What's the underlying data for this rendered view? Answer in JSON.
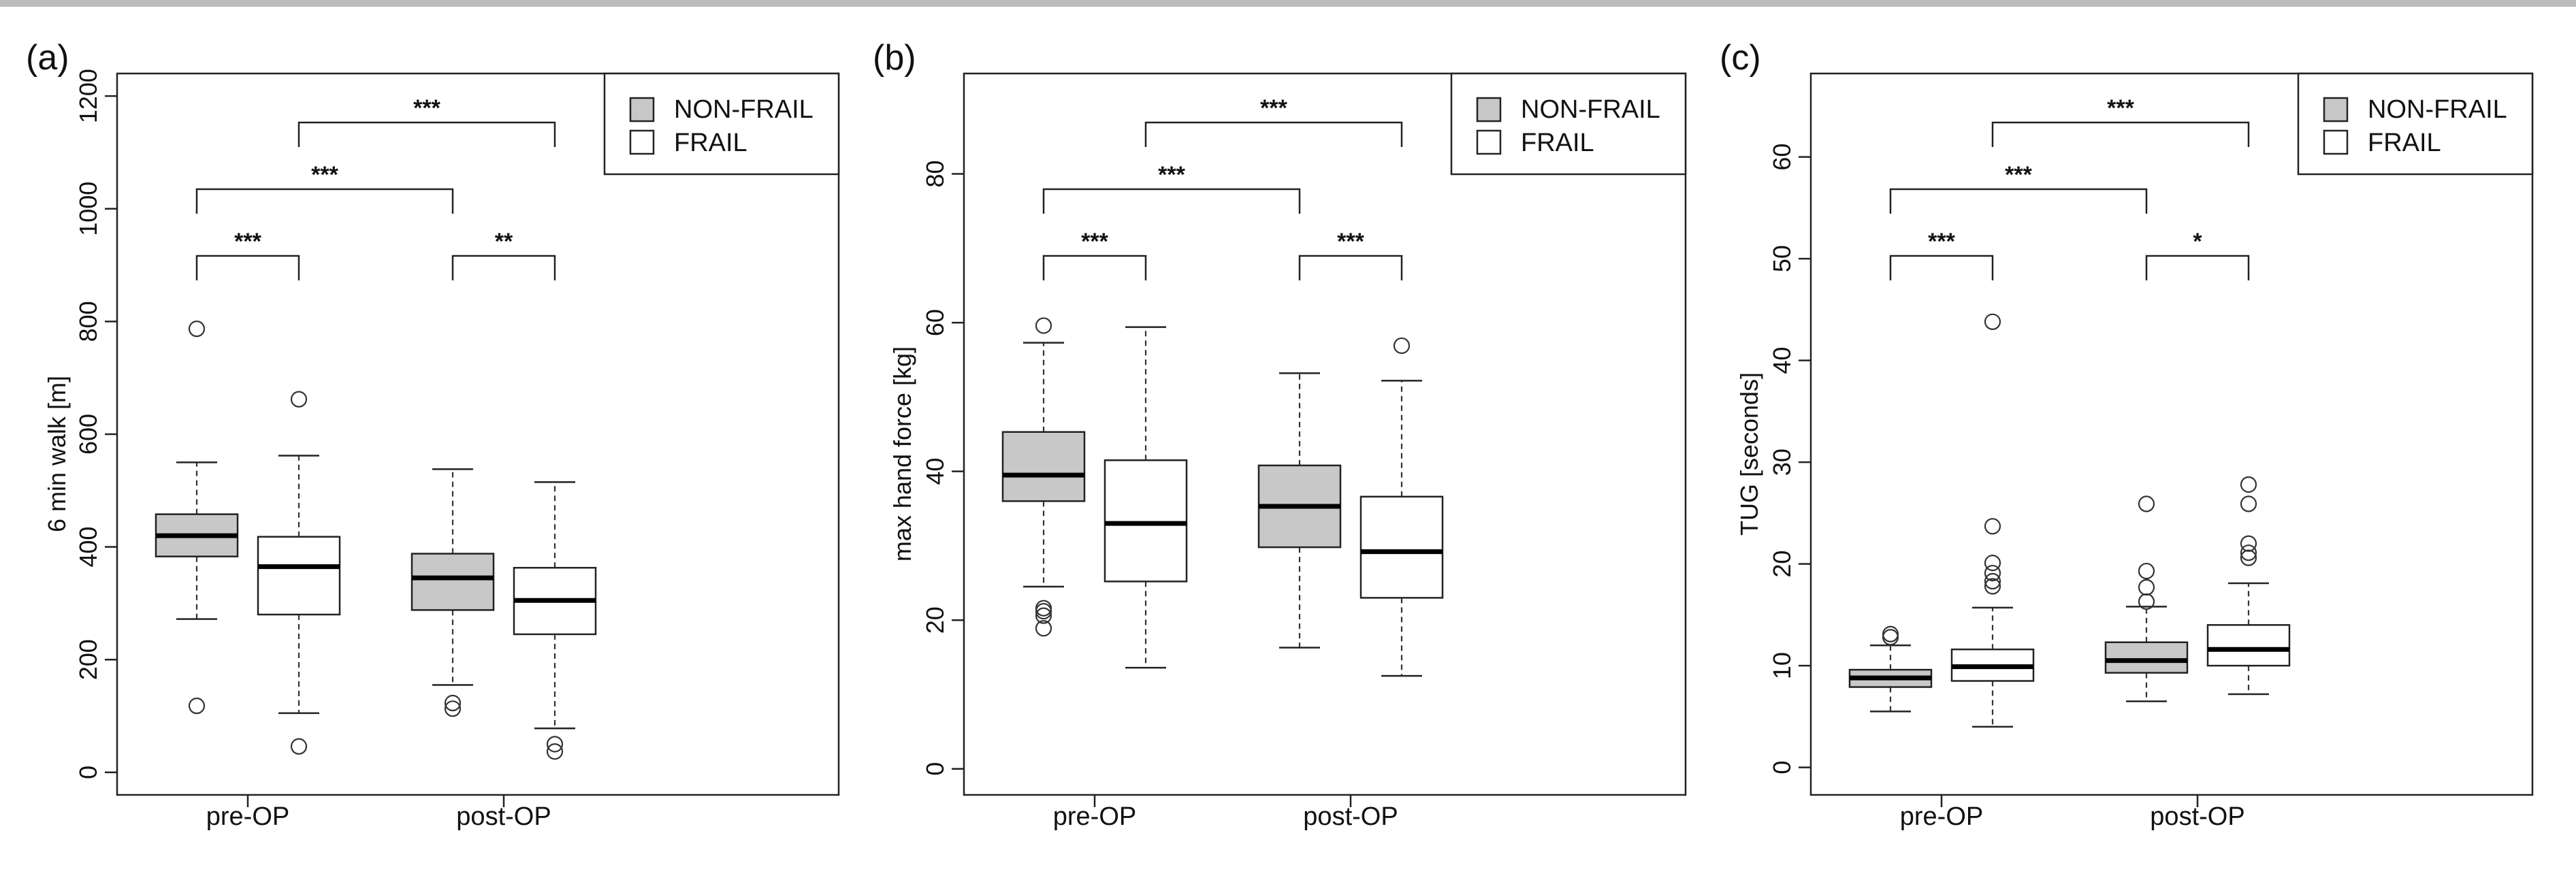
{
  "chart_data": [
    {
      "type": "boxplot",
      "panel_label": "(a)",
      "ylabel": "6 min walk [m]",
      "ylim": [
        -40,
        1240
      ],
      "yticks": [
        0,
        200,
        400,
        600,
        800,
        1000,
        1200
      ],
      "categories": [
        "pre-OP",
        "post-OP"
      ],
      "legend": {
        "position": "top-right",
        "entries": [
          "NON-FRAIL",
          "FRAIL"
        ]
      },
      "series": [
        {
          "name": "NON-FRAIL",
          "fill": "#c8c8c8",
          "boxes": [
            {
              "whisker_low": 272,
              "q1": 383,
              "median": 420,
              "q3": 458,
              "whisker_high": 550,
              "outliers": [
                118,
                787
              ]
            },
            {
              "whisker_low": 155,
              "q1": 288,
              "median": 345,
              "q3": 388,
              "whisker_high": 538,
              "outliers": [
                113,
                123
              ]
            }
          ]
        },
        {
          "name": "FRAIL",
          "fill": "#ffffff",
          "boxes": [
            {
              "whisker_low": 105,
              "q1": 280,
              "median": 365,
              "q3": 418,
              "whisker_high": 562,
              "outliers": [
                46,
                662
              ]
            },
            {
              "whisker_low": 78,
              "q1": 245,
              "median": 305,
              "q3": 363,
              "whisker_high": 515,
              "outliers": [
                37,
                50
              ]
            }
          ]
        }
      ],
      "significance": [
        {
          "from": 0,
          "to": 1,
          "level": 0,
          "stars": "***"
        },
        {
          "from": 2,
          "to": 3,
          "level": 0,
          "stars": "**"
        },
        {
          "from": 0,
          "to": 2,
          "level": 1,
          "stars": "***"
        },
        {
          "from": 1,
          "to": 3,
          "level": 2,
          "stars": "***"
        }
      ]
    },
    {
      "type": "boxplot",
      "panel_label": "(b)",
      "ylabel": "max hand force [kg]",
      "ylim": [
        -3.5,
        93.5
      ],
      "yticks": [
        0,
        20,
        40,
        60,
        80
      ],
      "categories": [
        "pre-OP",
        "post-OP"
      ],
      "legend": {
        "position": "top-right",
        "entries": [
          "NON-FRAIL",
          "FRAIL"
        ]
      },
      "series": [
        {
          "name": "NON-FRAIL",
          "fill": "#c8c8c8",
          "boxes": [
            {
              "whisker_low": 24.5,
              "q1": 36,
              "median": 39.5,
              "q3": 45.3,
              "whisker_high": 57.3,
              "outliers": [
                18.9,
                20.6,
                21.2,
                21.6,
                59.6
              ]
            },
            {
              "whisker_low": 16.3,
              "q1": 29.8,
              "median": 35.3,
              "q3": 40.8,
              "whisker_high": 53.2,
              "outliers": []
            }
          ]
        },
        {
          "name": "FRAIL",
          "fill": "#ffffff",
          "boxes": [
            {
              "whisker_low": 13.6,
              "q1": 25.2,
              "median": 33,
              "q3": 41.5,
              "whisker_high": 59.4,
              "outliers": []
            },
            {
              "whisker_low": 12.5,
              "q1": 23,
              "median": 29.2,
              "q3": 36.6,
              "whisker_high": 52.2,
              "outliers": [
                56.9
              ]
            }
          ]
        }
      ],
      "significance": [
        {
          "from": 0,
          "to": 1,
          "level": 0,
          "stars": "***"
        },
        {
          "from": 2,
          "to": 3,
          "level": 0,
          "stars": "***"
        },
        {
          "from": 0,
          "to": 2,
          "level": 1,
          "stars": "***"
        },
        {
          "from": 1,
          "to": 3,
          "level": 2,
          "stars": "***"
        }
      ]
    },
    {
      "type": "boxplot",
      "panel_label": "(c)",
      "ylabel": "TUG [seconds]",
      "ylim": [
        -2.7,
        68.2
      ],
      "yticks": [
        0,
        10,
        20,
        30,
        40,
        50,
        60
      ],
      "categories": [
        "pre-OP",
        "post-OP"
      ],
      "legend": {
        "position": "top-right",
        "entries": [
          "NON-FRAIL",
          "FRAIL"
        ]
      },
      "series": [
        {
          "name": "NON-FRAIL",
          "fill": "#c8c8c8",
          "boxes": [
            {
              "whisker_low": 5.5,
              "q1": 7.9,
              "median": 8.8,
              "q3": 9.6,
              "whisker_high": 12,
              "outliers": [
                12.8,
                13.1
              ]
            },
            {
              "whisker_low": 6.5,
              "q1": 9.3,
              "median": 10.5,
              "q3": 12.3,
              "whisker_high": 15.8,
              "outliers": [
                16.3,
                17.7,
                19.3,
                25.9
              ]
            }
          ]
        },
        {
          "name": "FRAIL",
          "fill": "#ffffff",
          "boxes": [
            {
              "whisker_low": 4,
              "q1": 8.5,
              "median": 9.9,
              "q3": 11.6,
              "whisker_high": 15.7,
              "outliers": [
                17.8,
                18.3,
                19.1,
                20.1,
                23.7,
                43.8
              ]
            },
            {
              "whisker_low": 7.2,
              "q1": 10,
              "median": 11.6,
              "q3": 14,
              "whisker_high": 18.1,
              "outliers": [
                20.6,
                21.1,
                22,
                25.9,
                27.8
              ]
            }
          ]
        }
      ],
      "significance": [
        {
          "from": 0,
          "to": 1,
          "level": 0,
          "stars": "***"
        },
        {
          "from": 2,
          "to": 3,
          "level": 0,
          "stars": "*"
        },
        {
          "from": 0,
          "to": 2,
          "level": 1,
          "stars": "***"
        },
        {
          "from": 1,
          "to": 3,
          "level": 2,
          "stars": "***"
        }
      ]
    }
  ]
}
